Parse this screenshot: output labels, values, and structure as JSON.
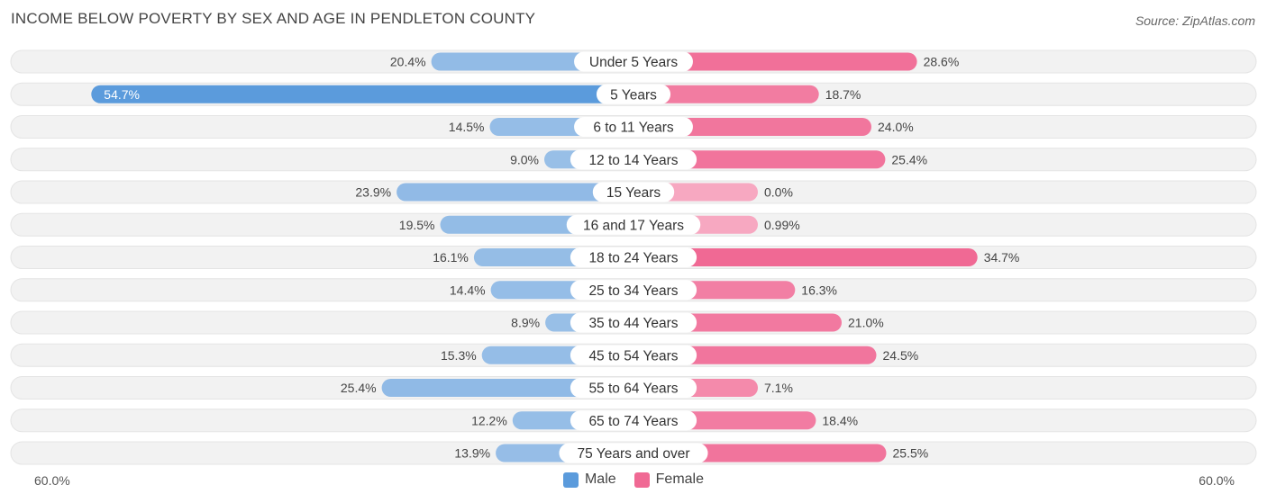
{
  "title": "INCOME BELOW POVERTY BY SEX AND AGE IN PENDLETON COUNTY",
  "source": "Source: ZipAtlas.com",
  "axis": {
    "left_label": "60.0%",
    "right_label": "60.0%"
  },
  "legend": {
    "male_label": "Male",
    "female_label": "Female"
  },
  "colors": {
    "male_strong": "#5b9bdc",
    "male_light": "#a8c8ea",
    "female_strong": "#f06994",
    "female_light": "#f7a8c1",
    "row_bg": "#f2f2f2"
  },
  "chart_data": {
    "type": "bar",
    "orientation": "horizontal-diverging",
    "title": "INCOME BELOW POVERTY BY SEX AND AGE IN PENDLETON COUNTY",
    "axis_max": 60.0,
    "categories": [
      "Under 5 Years",
      "5 Years",
      "6 to 11 Years",
      "12 to 14 Years",
      "15 Years",
      "16 and 17 Years",
      "18 to 24 Years",
      "25 to 34 Years",
      "35 to 44 Years",
      "45 to 54 Years",
      "55 to 64 Years",
      "65 to 74 Years",
      "75 Years and over"
    ],
    "series": [
      {
        "name": "Male",
        "values": [
          20.4,
          54.7,
          14.5,
          9.0,
          23.9,
          19.5,
          16.1,
          14.4,
          8.9,
          15.3,
          25.4,
          12.2,
          13.9
        ],
        "labels": [
          "20.4%",
          "54.7%",
          "14.5%",
          "9.0%",
          "23.9%",
          "19.5%",
          "16.1%",
          "14.4%",
          "8.9%",
          "15.3%",
          "25.4%",
          "12.2%",
          "13.9%"
        ]
      },
      {
        "name": "Female",
        "values": [
          28.6,
          18.7,
          24.0,
          25.4,
          0.0,
          0.99,
          34.7,
          16.3,
          21.0,
          24.5,
          7.1,
          18.4,
          25.5
        ],
        "labels": [
          "28.6%",
          "18.7%",
          "24.0%",
          "25.4%",
          "0.0%",
          "0.99%",
          "34.7%",
          "16.3%",
          "21.0%",
          "24.5%",
          "7.1%",
          "18.4%",
          "25.5%"
        ]
      }
    ]
  }
}
